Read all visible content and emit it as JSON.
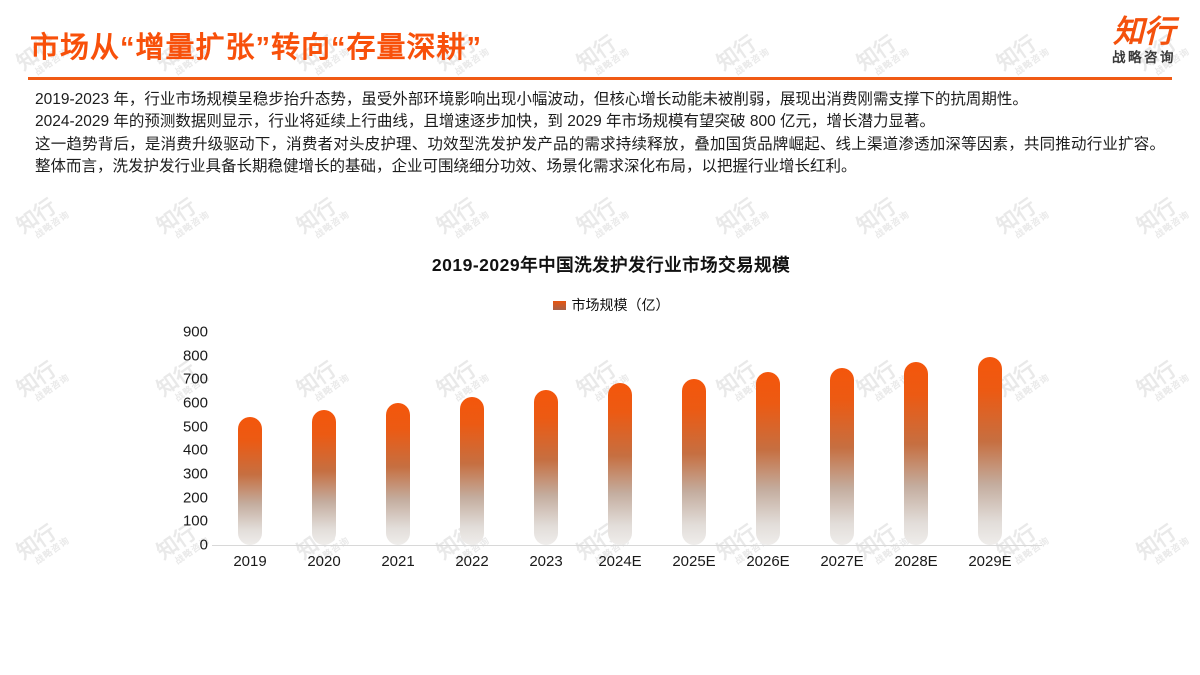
{
  "header": {
    "title": "市场从“增量扩张”转向“存量深耕”",
    "logo": {
      "name": "知行",
      "subtitle": "战略咨询"
    }
  },
  "watermark": {
    "line1": "知行",
    "line2": "战略咨询"
  },
  "paragraphs": [
    "2019-2023 年，行业市场规模呈稳步抬升态势，虽受外部环境影响出现小幅波动，但核心增长动能未被削弱，展现出消费刚需支撑下的抗周期性。",
    "2024-2029 年的预测数据则显示，行业将延续上行曲线，且增速逐步加快，到 2029 年市场规模有望突破 800 亿元，增长潜力显著。",
    "这一趋势背后，是消费升级驱动下，消费者对头皮护理、功效型洗发护发产品的需求持续释放，叠加国货品牌崛起、线上渠道渗透加深等因素，共同推动行业扩容。整体而言，洗发护发行业具备长期稳健增长的基础，企业可围绕细分功效、场景化需求深化布局，以把握行业增长红利。"
  ],
  "chart_data": {
    "type": "bar",
    "title": "2019-2029年中国洗发护发行业市场交易规模",
    "legend": "市场规模（亿）",
    "legend_position": "top-center",
    "categories": [
      "2019",
      "2020",
      "2021",
      "2022",
      "2023",
      "2024E",
      "2025E",
      "2026E",
      "2027E",
      "2028E",
      "2029E"
    ],
    "values": [
      540,
      570,
      600,
      625,
      655,
      685,
      700,
      730,
      750,
      775,
      795
    ],
    "xlabel": "",
    "ylabel": "",
    "ylim": [
      0,
      900
    ],
    "yticks": [
      0,
      100,
      200,
      300,
      400,
      500,
      600,
      700,
      800,
      900
    ],
    "grid": false,
    "bar_gradient_top": "#F4560B",
    "bar_gradient_bottom": "#EFEDEB"
  },
  "colors": {
    "accent": "#F8500A",
    "divider": "#F05A14",
    "body_text": "#1c1c1c",
    "axis_line": "#d8d8d8",
    "watermark": "#c7c7c7"
  }
}
